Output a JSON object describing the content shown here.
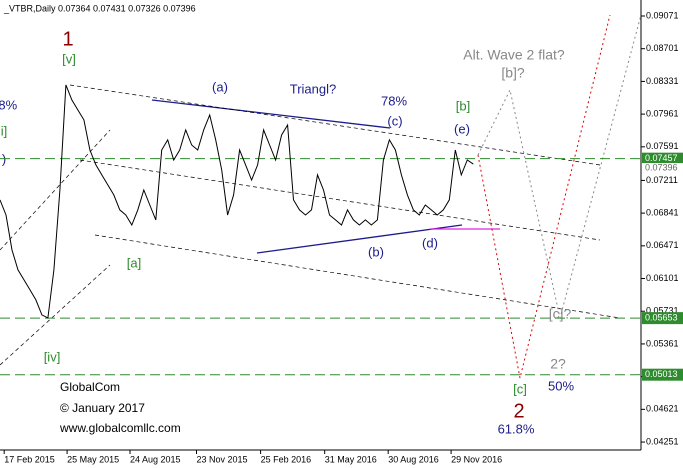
{
  "header": "_VTBR,Daily  0.07364 0.07431 0.07326 0.07396",
  "chart_data": {
    "type": "line",
    "color": "#000000",
    "values": [
      0.0699,
      0.0682,
      0.06424,
      0.06198,
      0.06085,
      0.05972,
      0.05859,
      0.05689,
      0.05655,
      0.06198,
      0.07103,
      0.08291,
      0.08121,
      0.08008,
      0.07895,
      0.07555,
      0.07386,
      0.07273,
      0.0716,
      0.07047,
      0.06877,
      0.0682,
      0.06707,
      0.06877,
      0.07103,
      0.06933,
      0.06764,
      0.07555,
      0.07669,
      0.07442,
      0.07555,
      0.07782,
      0.07612,
      0.07555,
      0.07782,
      0.07951,
      0.07669,
      0.0733,
      0.0682,
      0.07047,
      0.07555,
      0.07386,
      0.07216,
      0.07386,
      0.07782,
      0.07612,
      0.07442,
      0.07725,
      0.07838,
      0.0699,
      0.06877,
      0.0682,
      0.06877,
      0.07273,
      0.07103,
      0.0682,
      0.06764,
      0.06707,
      0.06877,
      0.06764,
      0.06707,
      0.06764,
      0.06707,
      0.06764,
      0.07442,
      0.07669,
      0.07555,
      0.07273,
      0.07047,
      0.06877,
      0.0682,
      0.06933,
      0.06877,
      0.0682,
      0.06877,
      0.0699,
      0.07555,
      0.07273,
      0.07442,
      0.07396
    ],
    "xlim": [
      0,
      107
    ],
    "xticks": [
      {
        "value": 0.7,
        "label": "17 Feb 2015"
      },
      {
        "value": 11.2,
        "label": "25 May 2015"
      },
      {
        "value": 21.7,
        "label": "24 Aug 2015"
      },
      {
        "value": 32.8,
        "label": "23 Nov 2015"
      },
      {
        "value": 43.5,
        "label": "25 Feb 2016"
      },
      {
        "value": 54.2,
        "label": "31 May 2016"
      },
      {
        "value": 64.8,
        "label": "30 Aug 2016"
      },
      {
        "value": 75.3,
        "label": "29 Nov 2016"
      }
    ],
    "ylim": [
      0.04161,
      0.09252
    ],
    "yticks": [
      0.09071,
      0.08701,
      0.08331,
      0.07961,
      0.07591,
      0.07211,
      0.06841,
      0.06471,
      0.06101,
      0.05731,
      0.05361,
      0.04991,
      0.04621,
      0.04251
    ],
    "levels": [
      {
        "value": 0.07457,
        "color": "#2e8b2e"
      },
      {
        "value": 0.05653,
        "color": "#2e8b2e"
      },
      {
        "value": 0.05013,
        "color": "#2e8b2e"
      }
    ],
    "last_price": 0.07396
  },
  "annotations": [
    "1",
    "[v]",
    ".8%",
    "i]",
    ")",
    "(a)",
    "Triangl?",
    "78%",
    "[b]",
    "(c)",
    "(e)",
    "Alt. Wave 2 flat?",
    "[b]?",
    "[a]",
    "(b)",
    "(d)",
    "[c]?",
    "2?",
    "50%",
    "[iv]",
    "[c]",
    "2",
    "61.8%"
  ],
  "watermark": [
    "GlobalCom",
    "© January 2017",
    "www.globalcomllc.com"
  ]
}
